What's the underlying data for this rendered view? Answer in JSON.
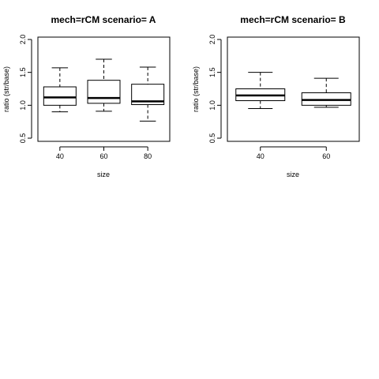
{
  "chart_data": [
    {
      "type": "boxplot",
      "title": "mech=rCM scenario= A",
      "xlabel": "size",
      "ylabel": "ratio (str/base)",
      "ylim": [
        0.5,
        2.0
      ],
      "yticks": [
        "0.5",
        "1.0",
        "1.5",
        "2.0"
      ],
      "categories": [
        "40",
        "60",
        "80"
      ],
      "boxes": [
        {
          "category": "40",
          "whisker_low": 0.9,
          "q1": 1.0,
          "median": 1.12,
          "q3": 1.28,
          "whisker_high": 1.57
        },
        {
          "category": "60",
          "whisker_low": 0.91,
          "q1": 1.03,
          "median": 1.11,
          "q3": 1.38,
          "whisker_high": 1.7
        },
        {
          "category": "80",
          "whisker_low": 0.76,
          "q1": 1.01,
          "median": 1.06,
          "q3": 1.32,
          "whisker_high": 1.58
        }
      ],
      "grid": false
    },
    {
      "type": "boxplot",
      "title": "mech=rCM scenario= B",
      "xlabel": "size",
      "ylabel": "ratio (str/base)",
      "ylim": [
        0.5,
        2.0
      ],
      "yticks": [
        "0.5",
        "1.0",
        "1.5",
        "2.0"
      ],
      "categories": [
        "40",
        "60"
      ],
      "boxes": [
        {
          "category": "40",
          "whisker_low": 0.95,
          "q1": 1.07,
          "median": 1.15,
          "q3": 1.25,
          "whisker_high": 1.5
        },
        {
          "category": "60",
          "whisker_low": 0.97,
          "q1": 1.0,
          "median": 1.08,
          "q3": 1.19,
          "whisker_high": 1.41
        }
      ],
      "grid": false
    }
  ]
}
